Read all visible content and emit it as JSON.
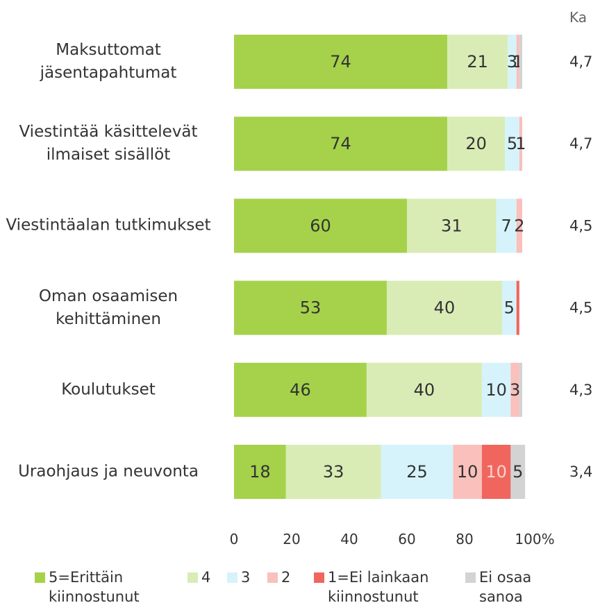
{
  "chart_data": {
    "type": "stacked-barh",
    "categories": [
      "Maksuttomat jäsentapahtumat",
      "Viestintää käsittelevät ilmaiset sisällöt",
      "Viestintäalan tutkimukset",
      "Oman osaamisen kehittäminen",
      "Koulutukset",
      "Uraohjaus ja neuvonta"
    ],
    "series": [
      {
        "name": "5=Erittäin kiinnostunut",
        "color": "#a5d24a",
        "label_color": "#333333",
        "values": [
          74,
          74,
          60,
          53,
          46,
          18
        ]
      },
      {
        "name": "4",
        "color": "#d9ecb5",
        "label_color": "#333333",
        "values": [
          21,
          20,
          31,
          40,
          40,
          33
        ]
      },
      {
        "name": "3",
        "color": "#d6f3fb",
        "label_color": "#333333",
        "values": [
          3,
          5,
          7,
          5,
          10,
          25
        ]
      },
      {
        "name": "2",
        "color": "#f9c0bc",
        "label_color": "#333333",
        "values": [
          1,
          1,
          2,
          0,
          3,
          10
        ],
        "value_labels": [
          "1",
          "1",
          "2",
          null,
          "3",
          "10"
        ]
      },
      {
        "name": "1=Ei lainkaan kiinnostunut",
        "color": "#f0665e",
        "label_color": "#fbd3cf",
        "values": [
          0,
          0,
          0,
          1,
          0,
          10
        ],
        "value_labels": [
          null,
          null,
          null,
          null,
          null,
          "10"
        ]
      },
      {
        "name": "Ei osaa sanoa",
        "color": "#d3d3d3",
        "label_color": "#333333",
        "values": [
          1,
          0,
          0,
          0,
          1,
          5
        ],
        "value_labels": [
          null,
          null,
          null,
          null,
          null,
          "5"
        ]
      }
    ],
    "xlim": [
      0,
      100
    ],
    "xticks": [
      0,
      20,
      40,
      60,
      80,
      {
        "value": 100,
        "label": "100%"
      }
    ],
    "ka": {
      "title": "Ka",
      "values": [
        4.7,
        4.7,
        4.5,
        4.5,
        4.3,
        3.4
      ],
      "value_labels": [
        "4,7",
        "4,7",
        "4,5",
        "4,5",
        "4,3",
        "3,4"
      ]
    }
  }
}
